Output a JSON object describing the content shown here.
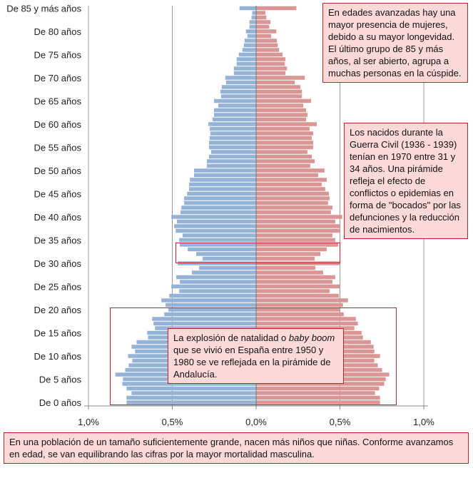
{
  "chart_data": {
    "type": "bar",
    "orientation": "horizontal-pyramid",
    "categories": [
      "0",
      "1",
      "2",
      "3",
      "4",
      "5",
      "6",
      "7",
      "8",
      "9",
      "10",
      "11",
      "12",
      "13",
      "14",
      "15",
      "16",
      "17",
      "18",
      "19",
      "20",
      "21",
      "22",
      "23",
      "24",
      "25",
      "26",
      "27",
      "28",
      "29",
      "30",
      "31",
      "32",
      "33",
      "34",
      "35",
      "36",
      "37",
      "38",
      "39",
      "40",
      "41",
      "42",
      "43",
      "44",
      "45",
      "46",
      "47",
      "48",
      "49",
      "50",
      "51",
      "52",
      "53",
      "54",
      "55",
      "56",
      "57",
      "58",
      "59",
      "60",
      "61",
      "62",
      "63",
      "64",
      "65",
      "66",
      "67",
      "68",
      "69",
      "70",
      "71",
      "72",
      "73",
      "74",
      "75",
      "76",
      "77",
      "78",
      "79",
      "80",
      "81",
      "82",
      "83",
      "84",
      "85+"
    ],
    "y_tick_labels": [
      "De 0 años",
      "De 5 años",
      "De 10 años",
      "De 15 años",
      "De 20 años",
      "De 25 años",
      "De 30 años",
      "De 35 años",
      "De 40 años",
      "De 45 años",
      "De 50 años",
      "De 55 años",
      "De 60 años",
      "De 65 años",
      "De 70 años",
      "De 75 años",
      "De 80 años",
      "De 85 y más años"
    ],
    "x_tick_labels": [
      "1,0%",
      "0,5%",
      "0,0%",
      "0,5%",
      "1,0%"
    ],
    "xlim": [
      -1.0,
      1.0
    ],
    "unit": "%",
    "grid": true,
    "series": [
      {
        "side": "left",
        "color": "#95b3d7",
        "values": [
          0.773,
          0.773,
          0.743,
          0.773,
          0.798,
          0.794,
          0.84,
          0.781,
          0.76,
          0.739,
          0.764,
          0.722,
          0.743,
          0.713,
          0.645,
          0.65,
          0.603,
          0.612,
          0.62,
          0.548,
          0.523,
          0.54,
          0.565,
          0.518,
          0.459,
          0.506,
          0.455,
          0.476,
          0.383,
          0.34,
          0.468,
          0.319,
          0.357,
          0.408,
          0.455,
          0.459,
          0.438,
          0.48,
          0.489,
          0.472,
          0.506,
          0.451,
          0.446,
          0.429,
          0.429,
          0.412,
          0.4,
          0.4,
          0.395,
          0.37,
          0.37,
          0.294,
          0.294,
          0.281,
          0.268,
          0.281,
          0.281,
          0.277,
          0.273,
          0.277,
          0.285,
          0.26,
          0.251,
          0.251,
          0.226,
          0.251,
          0.209,
          0.213,
          0.205,
          0.179,
          0.184,
          0.133,
          0.133,
          0.116,
          0.116,
          0.103,
          0.082,
          0.073,
          0.069,
          0.052,
          0.061,
          0.04,
          0.04,
          0.027,
          0.023,
          0.099
        ]
      },
      {
        "side": "right",
        "color": "#d99694",
        "values": [
          0.739,
          0.739,
          0.709,
          0.734,
          0.764,
          0.773,
          0.794,
          0.751,
          0.726,
          0.705,
          0.739,
          0.705,
          0.701,
          0.684,
          0.637,
          0.629,
          0.586,
          0.607,
          0.595,
          0.523,
          0.497,
          0.518,
          0.548,
          0.493,
          0.438,
          0.501,
          0.455,
          0.472,
          0.4,
          0.353,
          0.497,
          0.349,
          0.383,
          0.421,
          0.489,
          0.472,
          0.455,
          0.497,
          0.501,
          0.472,
          0.514,
          0.446,
          0.455,
          0.429,
          0.438,
          0.434,
          0.412,
          0.391,
          0.421,
          0.37,
          0.408,
          0.323,
          0.349,
          0.332,
          0.306,
          0.34,
          0.34,
          0.332,
          0.34,
          0.319,
          0.362,
          0.298,
          0.306,
          0.298,
          0.281,
          0.328,
          0.273,
          0.273,
          0.264,
          0.23,
          0.29,
          0.175,
          0.184,
          0.171,
          0.175,
          0.158,
          0.137,
          0.129,
          0.124,
          0.09,
          0.12,
          0.078,
          0.086,
          0.061,
          0.056,
          0.24
        ]
      }
    ],
    "annotations": [
      "En edades avanzadas hay una mayor presencia de mujeres, debido a su mayor longevidad.  El último grupo de 85 y más años, al ser abierto, agrupa a muchas personas en la cúspide.",
      "Los nacidos durante la Guerra Civil (1936 - 1939) tenían en 1970 entre 31 y 34 años. Una pirámide refleja el efecto de conflictos o epidemias en forma de \"bocados\" por las defunciones y la reducción de nacimientos.",
      "En una población de un tamaño suficientemente grande, nacen más niños que niñas. Conforme avanzamos en edad, se van equilibrando las cifras por la mayor mortalidad masculina."
    ],
    "baby_boom": {
      "pre": "La explosión de natalidad o ",
      "em": "baby boom",
      "post": " que se vivió en España entre 1950 y 1980 se ve reflejada en la pirámide de Andalucía."
    },
    "accent_border": "#b8272c",
    "note_fill": "#fdd9d9"
  }
}
